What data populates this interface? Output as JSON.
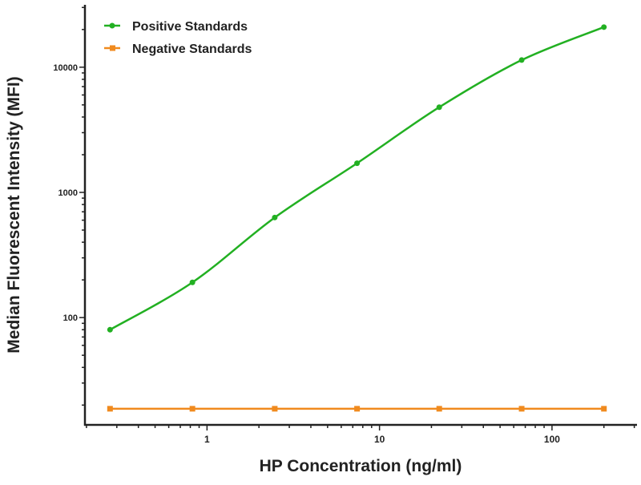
{
  "chart_data": {
    "type": "line",
    "title": "",
    "xlabel": "HP Concentration (ng/ml)",
    "ylabel": "Median Fluorescent Intensity (MFI)",
    "xscale": "log",
    "yscale": "log",
    "xlim": [
      0.196,
      311
    ],
    "ylim": [
      13.9,
      31500
    ],
    "xticks": [
      {
        "value": 1,
        "label": "1"
      },
      {
        "value": 10,
        "label": "10"
      },
      {
        "value": 100,
        "label": "100"
      }
    ],
    "yticks": [
      {
        "value": 100,
        "label": "100"
      },
      {
        "value": 1000,
        "label": "1000"
      },
      {
        "value": 10000,
        "label": "10000"
      }
    ],
    "grid": false,
    "legend_position": "top-left",
    "x": [
      0.274,
      0.823,
      2.47,
      7.41,
      22.2,
      66.7,
      200
    ],
    "series": [
      {
        "name": "Positive Standards",
        "color": "#22b022",
        "marker": "circle",
        "values": [
          80,
          191,
          630,
          1710,
          4790,
          11400,
          20900
        ]
      },
      {
        "name": "Negative Standards",
        "color": "#f08a1e",
        "marker": "square",
        "values": [
          18.7,
          18.7,
          18.7,
          18.7,
          18.7,
          18.7,
          18.7
        ]
      }
    ]
  }
}
